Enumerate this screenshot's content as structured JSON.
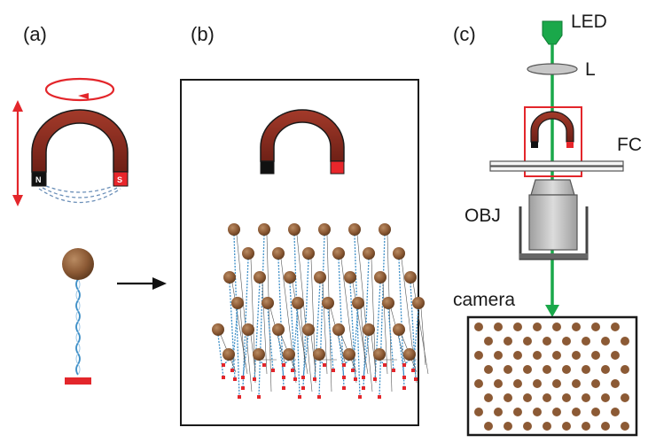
{
  "panels": {
    "a": {
      "label": "(a)"
    },
    "b": {
      "label": "(b)"
    },
    "c": {
      "label": "(c)"
    }
  },
  "magnet_poles": {
    "north": "N",
    "south": "S"
  },
  "setup_labels": {
    "led": "LED",
    "lens": "L",
    "flow_cell": "FC",
    "objective": "OBJ",
    "camera": "camera"
  },
  "colors": {
    "magnet_body": "#8b2e22",
    "pole_south": "#e8262b",
    "pole_north": "#111111",
    "arrow_red": "#e3262b",
    "bead": "#8c5a35",
    "tether": "#3e8fc7",
    "anchor": "#e3262b",
    "beam": "#1aa84a",
    "objective_gray": "#c7c7c7"
  }
}
